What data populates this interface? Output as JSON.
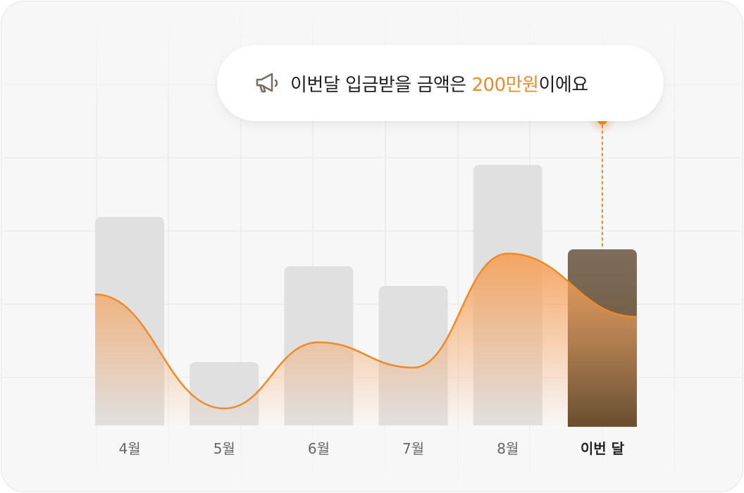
{
  "colors": {
    "line": "#f08a24",
    "bar": "#e0e0e0",
    "bar_highlight_top": "#7d6d5a",
    "bar_highlight_bottom": "#6a4e2e",
    "area_top": "#f5a25c",
    "label": "#666666",
    "label_highlight": "#222222",
    "accent": "#f08a24"
  },
  "callout": {
    "icon": "megaphone-icon",
    "text_before": "이번달 입금받을 금액은 ",
    "amount": "200만원",
    "text_after": "이에요"
  },
  "chart_data": {
    "type": "bar",
    "categories": [
      "4월",
      "5월",
      "6월",
      "7월",
      "8월",
      "이번 달"
    ],
    "series": [
      {
        "type": "bar",
        "values": [
          148,
          45,
          113,
          99,
          185,
          125
        ]
      },
      {
        "type": "line",
        "values": [
          93,
          12,
          59,
          41,
          122,
          77
        ]
      }
    ],
    "highlight_index": 5,
    "ylim": [
      0,
      200
    ],
    "grid": true
  }
}
